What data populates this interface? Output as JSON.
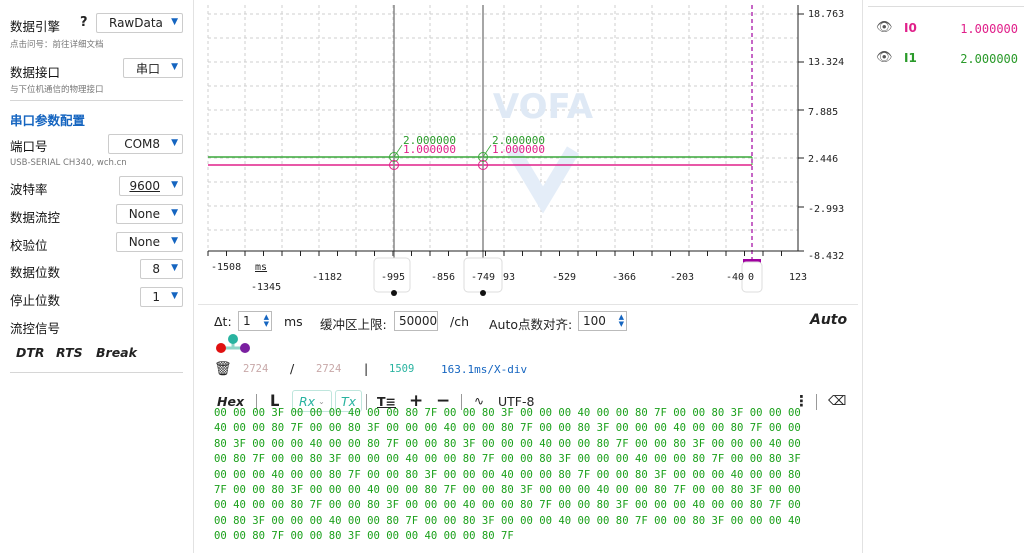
{
  "left": {
    "engine": {
      "label": "数据引擎",
      "help": "?",
      "hint": "点击问号：前往详细文档",
      "value": "RawData"
    },
    "interface": {
      "label": "数据接口",
      "hint": "与下位机通信的物理接口",
      "value": "串口"
    },
    "section_title": "串口参数配置",
    "port": {
      "label": "端口号",
      "value": "COM8",
      "hint": "USB-SERIAL CH340, wch.cn"
    },
    "baud": {
      "label": "波特率",
      "value": "9600"
    },
    "flow": {
      "label": "数据流控",
      "value": "None"
    },
    "parity": {
      "label": "校验位",
      "value": "None"
    },
    "databits": {
      "label": "数据位数",
      "value": "8"
    },
    "stopbits": {
      "label": "停止位数",
      "value": "1"
    },
    "flow_signal": {
      "label": "流控信号",
      "dtr": "DTR",
      "rts": "RTS",
      "brk": "Break"
    }
  },
  "plot": {
    "watermark": "VOFA",
    "y_ticks": [
      "18.763",
      "13.324",
      "7.885",
      "2.446",
      "-2.993",
      "-8.432"
    ],
    "x_ticks_top": [
      "-1508",
      "-1182",
      "-856",
      "-529",
      "-366",
      "-203",
      "-40",
      "123"
    ],
    "x_ticks_bottom": [
      "-1345"
    ],
    "x_unit": "ms",
    "cursor_labels": [
      "-995",
      "-749",
      "0"
    ],
    "cursor_partial": "93",
    "cursor_values": {
      "c1_a": "2.000000",
      "c1_b": "1.000000",
      "c2_a": "2.000000",
      "c2_b": "1.000000"
    },
    "colors": {
      "I0": "#e0208a",
      "I1": "#3aa83a",
      "cursor_end": "#a000a0"
    }
  },
  "channels": [
    {
      "name": "I0",
      "value": "1.000000",
      "color": "#e0208a",
      "icon": "eye-icon"
    },
    {
      "name": "I1",
      "value": "2.000000",
      "color": "#2a9a2a",
      "icon": "eye-icon"
    }
  ],
  "controls": {
    "dt_label": "Δt:",
    "dt_value": "1",
    "dt_unit": "ms",
    "buffer_label": "缓冲区上限:",
    "buffer_value": "50000",
    "buffer_unit": "/ch",
    "align_label": "Auto点数对齐:",
    "align_value": "100",
    "auto": "Auto",
    "count_a": "2724",
    "slash": "/",
    "count_b": "2724",
    "bar": "|",
    "count_c": "1509",
    "xdiv": "163.1ms/X-div"
  },
  "hexbar": {
    "hex": "Hex",
    "rx": "Rx",
    "tx": "Tx",
    "encoding": "UTF-8"
  },
  "hex_lines": [
    "00 00 00 3F 00 00 00 40 00 00 80 7F 00 00 80 3F 00 00 00 40 00 00 80 7F 00 00 80 3F 00 00 00",
    "40 00 00 80 7F 00 00 80 3F 00 00 00 40 00 00 80 7F 00 00 80 3F 00 00 00 40 00 00 80 7F 00 00",
    "80 3F 00 00 00 40 00 00 80 7F 00 00 80 3F 00 00 00 40 00 00 80 7F 00 00 80 3F 00 00 00 40 00",
    "00 80 7F 00 00 80 3F 00 00 00 40 00 00 80 7F 00 00 80 3F 00 00 00 40 00 00 80 7F 00 00 80 3F",
    "00 00 00 40 00 00 80 7F 00 00 80 3F 00 00 00 40 00 00 80 7F 00 00 80 3F 00 00 00 40 00 00 80",
    "7F 00 00 80 3F 00 00 00 40 00 00 80 7F 00 00 80 3F 00 00 00 40 00 00 80 7F 00 00 80 3F 00 00",
    "00 40 00 00 80 7F 00 00 80 3F 00 00 00 40 00 00 80 7F 00 00 80 3F 00 00 00 40 00 00 80 7F 00",
    "00 80 3F 00 00 00 40 00 00 80 7F 00 00 80 3F 00 00 00 40 00 00 80 7F 00 00 80 3F 00 00 00 40",
    "00 00 80 7F 00 00 80 3F 00 00 00 40 00 00 80 7F"
  ]
}
